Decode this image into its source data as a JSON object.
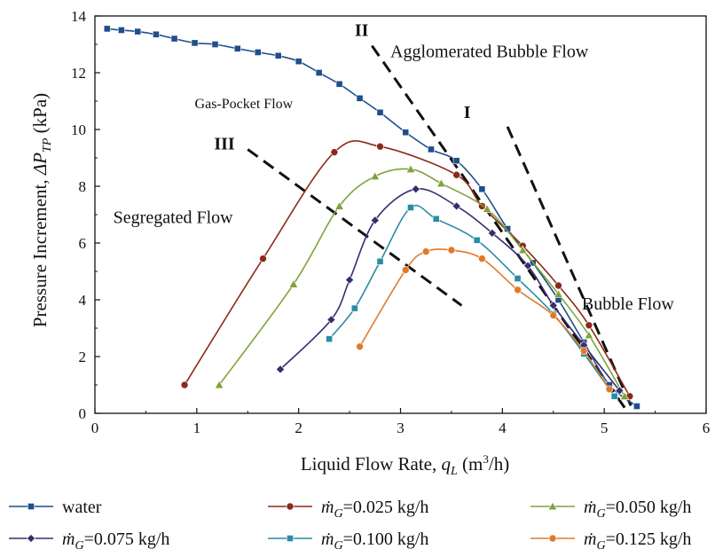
{
  "chart_data": {
    "type": "line",
    "xlabel": {
      "main": "Liquid Flow Rate, ",
      "var": "q",
      "sub": "L",
      "unit_pre": " (m",
      "sup": "3",
      "unit_post": "/h)"
    },
    "ylabel": {
      "main": "Pressure Increment, ",
      "var": "ΔP",
      "sub": "TP",
      "unit": " (kPa)"
    },
    "xlim": [
      0,
      6
    ],
    "ylim": [
      0,
      14
    ],
    "xticks": [
      "0",
      "1",
      "2",
      "3",
      "4",
      "5",
      "6"
    ],
    "yticks": [
      "0",
      "2",
      "4",
      "6",
      "8",
      "10",
      "12",
      "14"
    ],
    "grid": false,
    "legend_position": "bottom",
    "series": [
      {
        "name": "water",
        "legend_prefix": "",
        "legend_value": "water",
        "color": "#1f4e8c",
        "marker": "square",
        "x": [
          0.12,
          0.26,
          0.42,
          0.6,
          0.78,
          0.98,
          1.18,
          1.4,
          1.6,
          1.8,
          2.0,
          2.2,
          2.4,
          2.6,
          2.8,
          3.05,
          3.3,
          3.55,
          3.8,
          4.05,
          4.3,
          4.55,
          4.8,
          5.05,
          5.32
        ],
        "y": [
          13.55,
          13.5,
          13.45,
          13.35,
          13.2,
          13.05,
          13.0,
          12.85,
          12.72,
          12.6,
          12.4,
          12.0,
          11.6,
          11.1,
          10.6,
          9.9,
          9.3,
          8.9,
          7.9,
          6.5,
          5.3,
          4.0,
          2.5,
          1.0,
          0.25
        ]
      },
      {
        "name": "ṁG=0.025 kg/h",
        "legend_prefix": "ṁ",
        "legend_sub": "G",
        "legend_value": "=0.025 kg/h",
        "color": "#8b2a1a",
        "marker": "circle",
        "x": [
          0.88,
          1.65,
          2.35,
          2.8,
          3.55,
          3.8,
          4.2,
          4.55,
          4.85,
          5.25
        ],
        "y": [
          1.0,
          5.45,
          9.2,
          9.4,
          8.4,
          7.3,
          5.9,
          4.5,
          3.1,
          0.6
        ]
      },
      {
        "name": "ṁG=0.050 kg/h",
        "legend_prefix": "ṁ",
        "legend_sub": "G",
        "legend_value": "=0.050 kg/h",
        "color": "#7ea33a",
        "marker": "triangle",
        "x": [
          1.22,
          1.95,
          2.4,
          2.75,
          3.1,
          3.4,
          3.85,
          4.2,
          4.55,
          4.85,
          5.2
        ],
        "y": [
          1.0,
          4.55,
          7.3,
          8.35,
          8.6,
          8.1,
          7.2,
          5.75,
          4.2,
          2.75,
          0.6
        ]
      },
      {
        "name": "ṁG=0.075 kg/h",
        "legend_prefix": "ṁ",
        "legend_sub": "G",
        "legend_value": "=0.075 kg/h",
        "color": "#3a2a6e",
        "marker": "diamond",
        "x": [
          1.82,
          2.32,
          2.5,
          2.75,
          3.15,
          3.55,
          3.9,
          4.25,
          4.5,
          4.8,
          5.15
        ],
        "y": [
          1.55,
          3.3,
          4.7,
          6.8,
          7.9,
          7.3,
          6.35,
          5.2,
          3.8,
          2.4,
          0.8
        ]
      },
      {
        "name": "ṁG=0.100 kg/h",
        "legend_prefix": "ṁ",
        "legend_sub": "G",
        "legend_value": "=0.100 kg/h",
        "color": "#2a8ca6",
        "marker": "square",
        "x": [
          2.3,
          2.55,
          2.8,
          3.1,
          3.35,
          3.75,
          4.15,
          4.5,
          4.8,
          5.1
        ],
        "y": [
          2.62,
          3.7,
          5.35,
          7.25,
          6.85,
          6.1,
          4.75,
          3.5,
          2.1,
          0.6
        ]
      },
      {
        "name": "ṁG=0.125 kg/h",
        "legend_prefix": "ṁ",
        "legend_sub": "G",
        "legend_value": "=0.125 kg/h",
        "color": "#e07a2a",
        "marker": "circle",
        "x": [
          2.6,
          3.05,
          3.25,
          3.5,
          3.8,
          4.15,
          4.5,
          4.8,
          5.05
        ],
        "y": [
          2.35,
          5.05,
          5.7,
          5.75,
          5.45,
          4.35,
          3.45,
          2.2,
          0.85
        ]
      }
    ],
    "transition_lines": [
      {
        "label": "I",
        "x": [
          4.05,
          5.27
        ],
        "y": [
          10.1,
          0.2
        ],
        "label_x": 3.62,
        "label_y": 10.4
      },
      {
        "label": "II",
        "x": [
          2.72,
          5.2
        ],
        "y": [
          12.95,
          0.2
        ],
        "label_x": 2.55,
        "label_y": 13.3
      },
      {
        "label": "III",
        "x": [
          1.5,
          3.6
        ],
        "y": [
          9.3,
          3.8
        ],
        "label_x": 1.17,
        "label_y": 9.3
      }
    ],
    "regions": [
      {
        "label": "Agglomerated Bubble  Flow",
        "x": 2.9,
        "y": 12.55,
        "size": "normal"
      },
      {
        "label": "Gas-Pocket Flow",
        "x": 0.98,
        "y": 10.75,
        "size": "small"
      },
      {
        "label": "Segregated Flow",
        "x": 0.18,
        "y": 6.7,
        "size": "normal"
      },
      {
        "label": "Bubble Flow",
        "x": 4.78,
        "y": 3.65,
        "size": "normal"
      }
    ]
  }
}
